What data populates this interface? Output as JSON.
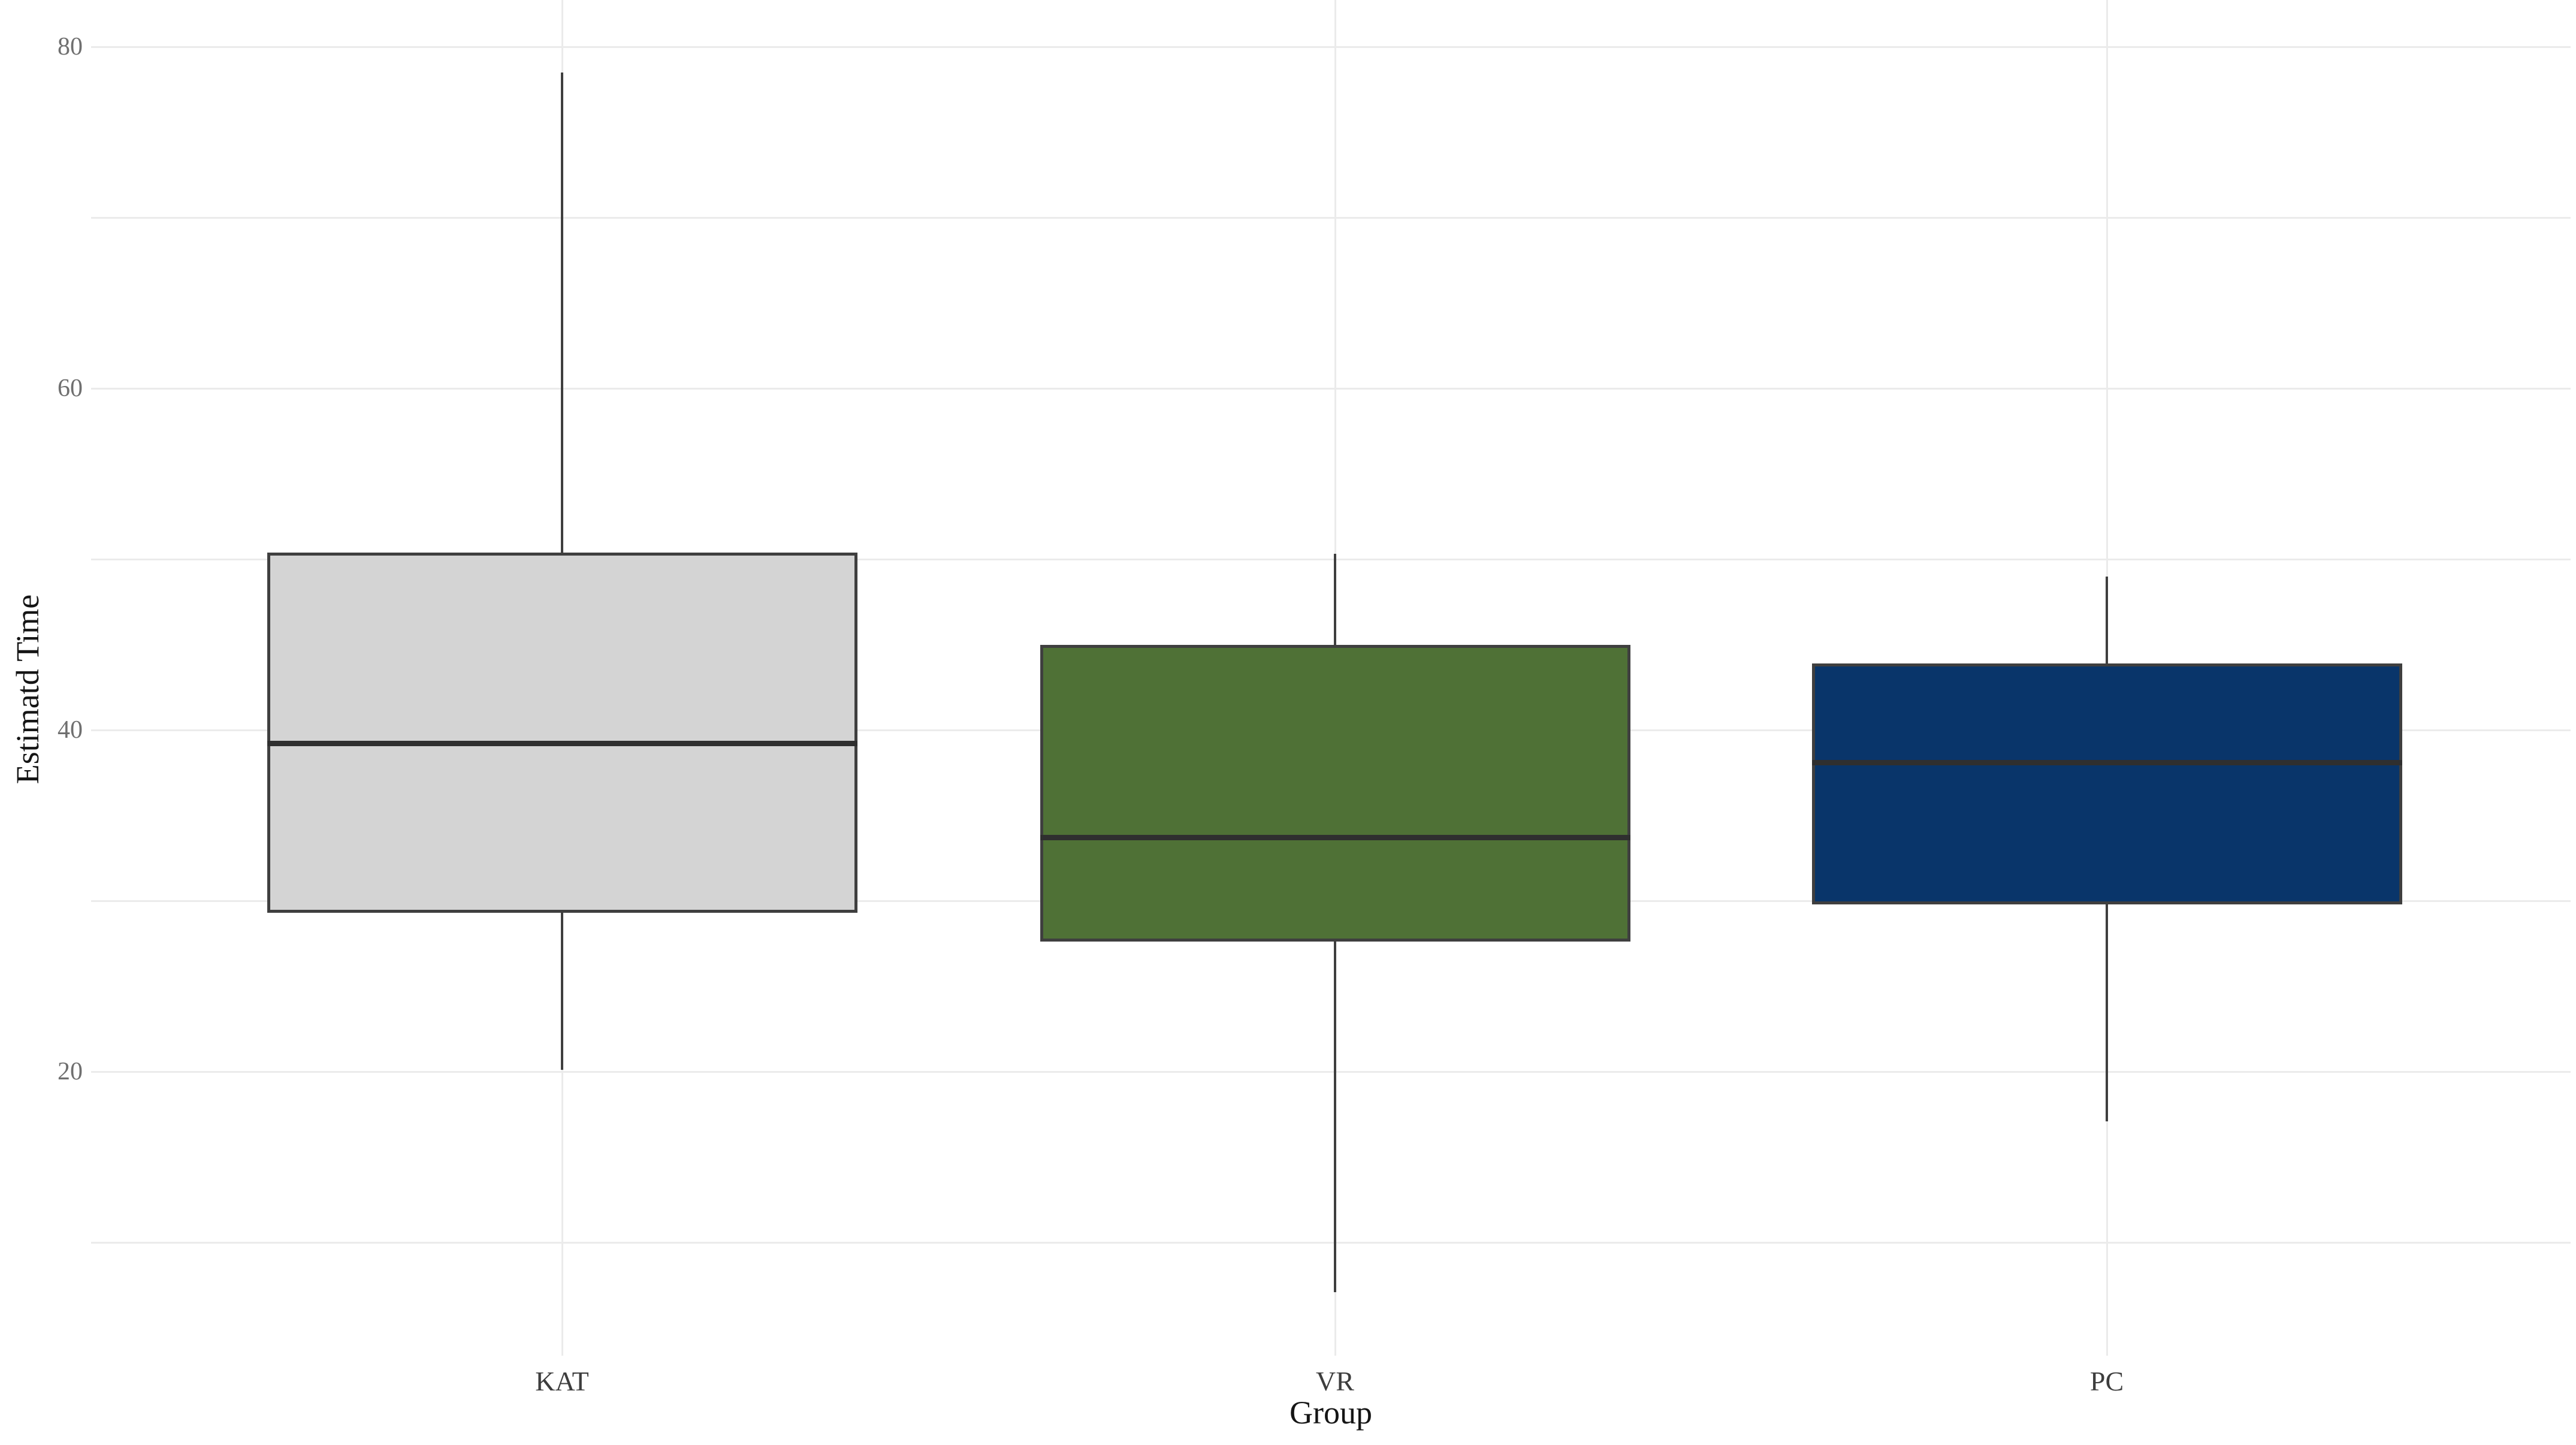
{
  "figure": {
    "background": "#ffffff"
  },
  "chart_data": {
    "type": "boxplot",
    "title": "",
    "xlabel": "Group",
    "ylabel": "Estimatd Time",
    "categories": [
      "KAT",
      "VR",
      "PC"
    ],
    "series": [
      {
        "name": "KAT",
        "whisker_low": 20.1,
        "q1": 29.3,
        "median": 39.2,
        "q3": 50.4,
        "whisker_high": 78.5,
        "fill_color": "#d4d4d4"
      },
      {
        "name": "VR",
        "whisker_low": 7.1,
        "q1": 27.6,
        "median": 33.7,
        "q3": 45.0,
        "whisker_high": 50.3,
        "fill_color": "#4f7136"
      },
      {
        "name": "PC",
        "whisker_low": 17.1,
        "q1": 29.8,
        "median": 38.1,
        "q3": 43.9,
        "whisker_high": 49.0,
        "fill_color": "#09356a"
      }
    ],
    "ylim": [
      2,
      82
    ],
    "yticks_labeled": [
      20,
      40,
      60,
      80
    ],
    "gridlines_minor": [
      10,
      30,
      50,
      70
    ],
    "grid": true,
    "legend": false,
    "outliers": []
  },
  "colors": {
    "grid": "#ebebeb",
    "box_border": "#3f3f3f",
    "median": "#2f2f2f",
    "y_tick_text": "#6f6f6f",
    "x_tick_text": "#3d3d3d",
    "axis_title_text": "#151515",
    "background": "#ffffff"
  }
}
